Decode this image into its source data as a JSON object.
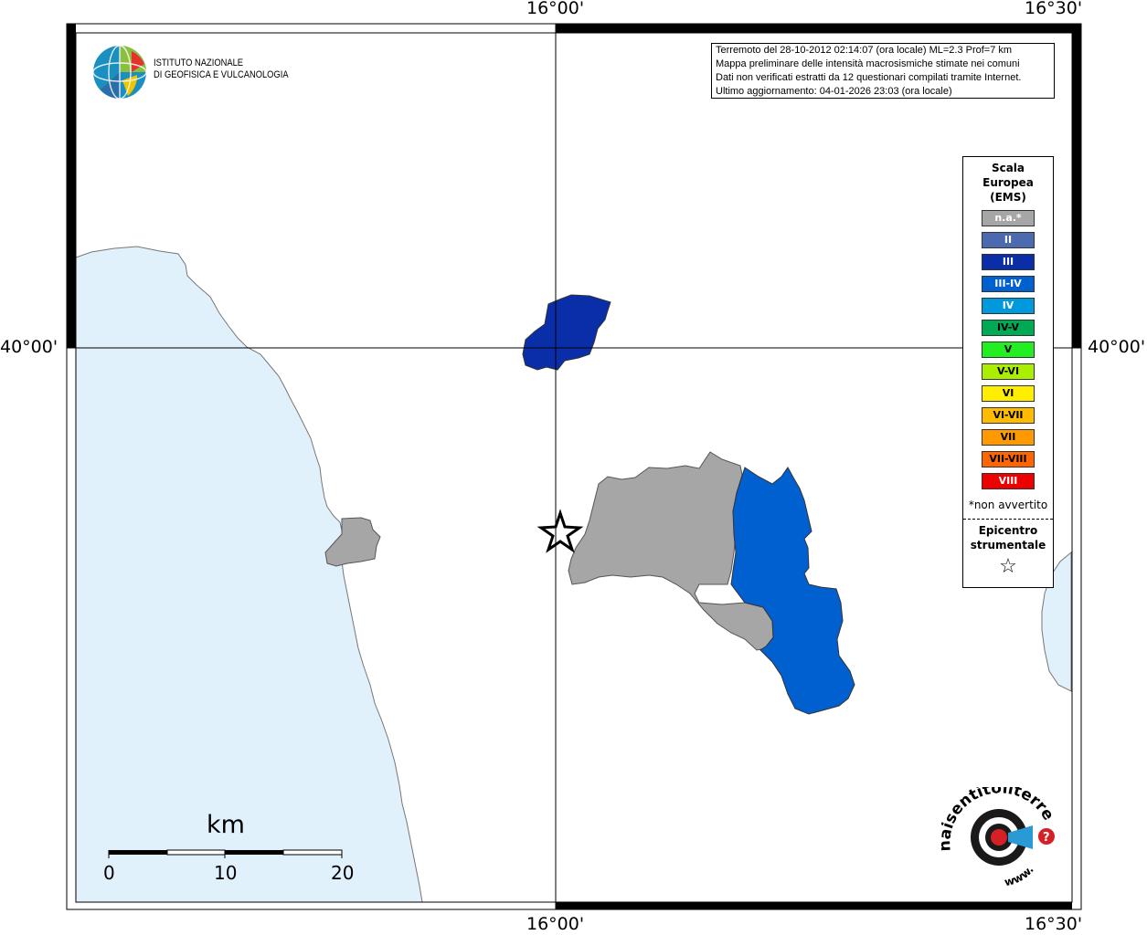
{
  "map": {
    "coords": {
      "top_left_lon": "16°00'",
      "top_right_lon": "16°30'",
      "bottom_left_lon": "16°00'",
      "bottom_right_lon": "16°30'",
      "left_lat": "40°00'",
      "right_lat": "40°00'"
    },
    "colors": {
      "sea": "#e0f1fb",
      "land": "#ffffff",
      "na": "#a6a6a6",
      "intensity_III": "#0a2ea8",
      "intensity_III_IV": "#0060d0"
    },
    "epicenter_symbol": "star-icon"
  },
  "info_box": {
    "line1": "Terremoto del 28-10-2012 02:14:07 (ora locale) ML=2.3 Prof=7 km",
    "line2": "Mappa preliminare delle intensità macrosismiche stimate nei comuni",
    "line3": "Dati non verificati estratti da 12 questionari compilati tramite Internet.",
    "line4": "Ultimo aggiornamento: 04-01-2026 23:03 (ora locale)"
  },
  "logo": {
    "line1": "ISTITUTO NAZIONALE",
    "line2": "DI GEOFISICA E VULCANOLOGIA"
  },
  "legend": {
    "title1": "Scala",
    "title2": "Europea",
    "title3": "(EMS)",
    "items": [
      {
        "label": "n.a.*",
        "color": "#a6a6a6",
        "text_color": "#ffffff"
      },
      {
        "label": "II",
        "color": "#4c6ab0",
        "text_color": "#ffffff"
      },
      {
        "label": "III",
        "color": "#0a2ea8",
        "text_color": "#ffffff"
      },
      {
        "label": "III-IV",
        "color": "#0060d0",
        "text_color": "#ffffff"
      },
      {
        "label": "IV",
        "color": "#0099dd",
        "text_color": "#ffffff"
      },
      {
        "label": "IV-V",
        "color": "#00aa55",
        "text_color": "#000000"
      },
      {
        "label": "V",
        "color": "#22ee22",
        "text_color": "#000000"
      },
      {
        "label": "V-VI",
        "color": "#aaee00",
        "text_color": "#000000"
      },
      {
        "label": "VI",
        "color": "#ffee00",
        "text_color": "#000000"
      },
      {
        "label": "VI-VII",
        "color": "#ffbb00",
        "text_color": "#000000"
      },
      {
        "label": "VII",
        "color": "#ff9900",
        "text_color": "#000000"
      },
      {
        "label": "VII-VIII",
        "color": "#ff6600",
        "text_color": "#000000"
      },
      {
        "label": "VIII",
        "color": "#ee0000",
        "text_color": "#ffffff"
      }
    ],
    "note": "*non avvertito",
    "epicenter_label1": "Epicentro",
    "epicenter_label2": "strumentale",
    "epicenter_symbol": "☆"
  },
  "scale_bar": {
    "title": "km",
    "labels": [
      "0",
      "10",
      "20"
    ]
  },
  "badge": {
    "text": "haisentitoilterremoto.it",
    "www": "www."
  }
}
